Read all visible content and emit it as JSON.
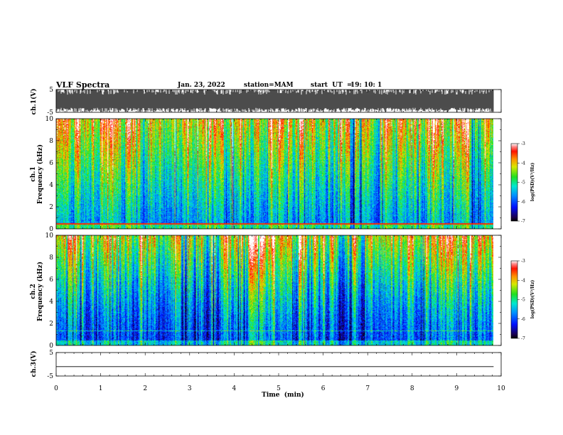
{
  "header": {
    "title": "VLF Spectra",
    "date": "Jan. 23, 2022",
    "station": "station=MAM",
    "start_label": "start  UT  =",
    "start_time": "19: 10: 1"
  },
  "chart_data": [
    {
      "type": "line",
      "name": "ch1-waveform",
      "ylabel": "ch.1(V)",
      "ylim": [
        -5,
        5
      ],
      "yticks": [
        "5",
        "-5"
      ],
      "xlim": [
        0,
        10
      ],
      "description_fill": "dense saturated waveform"
    },
    {
      "type": "heatmap",
      "name": "ch1-spectrogram",
      "ylabel_line1": "ch.1",
      "ylabel_line2": "Frequency (kHz)",
      "ylim": [
        0,
        10
      ],
      "yticks": [
        "0",
        "2",
        "4",
        "6",
        "8",
        "10"
      ],
      "xlim": [
        0,
        10
      ],
      "data_end_min": 9.83,
      "colorbar": {
        "label": "log(PSD)(V²/Hz)",
        "range": [
          -7,
          -3
        ],
        "ticks": [
          "-3",
          "-4",
          "-5",
          "-6",
          "-7"
        ]
      }
    },
    {
      "type": "heatmap",
      "name": "ch2-spectrogram",
      "ylabel_line1": "ch.2",
      "ylabel_line2": "Frequency (kHz)",
      "ylim": [
        0,
        10
      ],
      "yticks": [
        "0",
        "2",
        "4",
        "6",
        "8",
        "10"
      ],
      "xlim": [
        0,
        10
      ],
      "data_end_min": 9.83,
      "colorbar": {
        "label": "log(PSD)(V²/Hz)",
        "range": [
          -7,
          -3
        ],
        "ticks": [
          "-3",
          "-4",
          "-5",
          "-6",
          "-7"
        ]
      }
    },
    {
      "type": "line",
      "name": "ch3-waveform",
      "ylabel": "ch.3(V)",
      "ylim": [
        -5,
        5
      ],
      "yticks": [
        "5",
        "-5"
      ],
      "xlim": [
        0,
        10
      ],
      "x": [
        0,
        9.83
      ],
      "y": [
        -1,
        -1
      ]
    }
  ],
  "xaxis": {
    "label": "Time  (min)",
    "ticks": [
      "0",
      "1",
      "2",
      "3",
      "4",
      "5",
      "6",
      "7",
      "8",
      "9",
      "10"
    ]
  }
}
